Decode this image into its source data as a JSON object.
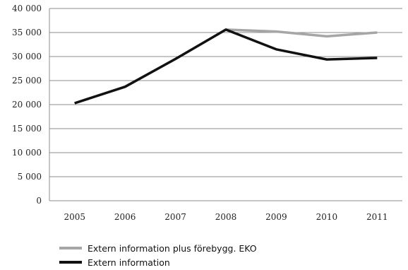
{
  "chart_data": {
    "type": "line",
    "categories": [
      "2005",
      "2006",
      "2007",
      "2008",
      "2009",
      "2010",
      "2011"
    ],
    "y_ticks": [
      "0",
      "5 000",
      "10 000",
      "15 000",
      "20 000",
      "25 000",
      "30 000",
      "35 000",
      "40 000"
    ],
    "ylim": [
      0,
      40000
    ],
    "grid": true,
    "legend_position": "bottom-left",
    "series": [
      {
        "name": "Extern information plus förebygg. EKO",
        "color": "#a6a6a6",
        "values": [
          20300,
          23700,
          29500,
          35600,
          35200,
          34200,
          35000
        ]
      },
      {
        "name": "Extern information",
        "color": "#111111",
        "values": [
          20300,
          23700,
          29500,
          35600,
          31500,
          29400,
          29700
        ]
      }
    ]
  }
}
